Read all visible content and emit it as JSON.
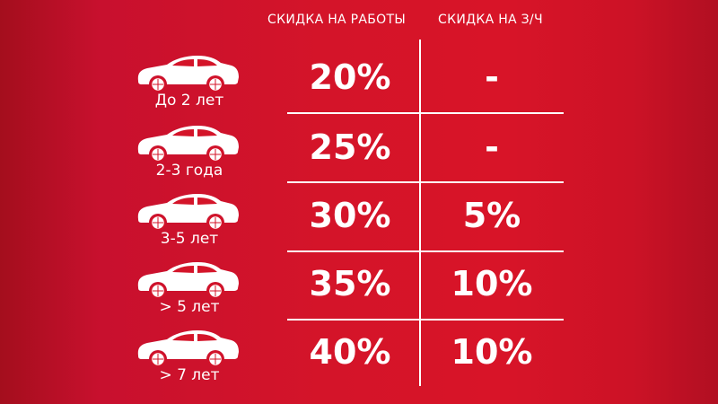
{
  "headers": {
    "works": "СКИДКА НА РАБОТЫ",
    "parts": "СКИДКА НА З/Ч"
  },
  "rows": [
    {
      "age": "До 2 лет",
      "works": "20%",
      "parts": "-"
    },
    {
      "age": "2-3 года",
      "works": "25%",
      "parts": "-"
    },
    {
      "age": "3-5 лет",
      "works": "30%",
      "parts": "5%"
    },
    {
      "age": "> 5 лет",
      "works": "35%",
      "parts": "10%"
    },
    {
      "age": "> 7 лет",
      "works": "40%",
      "parts": "10%"
    }
  ],
  "icons": {
    "row_icon": "car-icon"
  },
  "colors": {
    "background": "#d41429",
    "text": "#ffffff"
  }
}
